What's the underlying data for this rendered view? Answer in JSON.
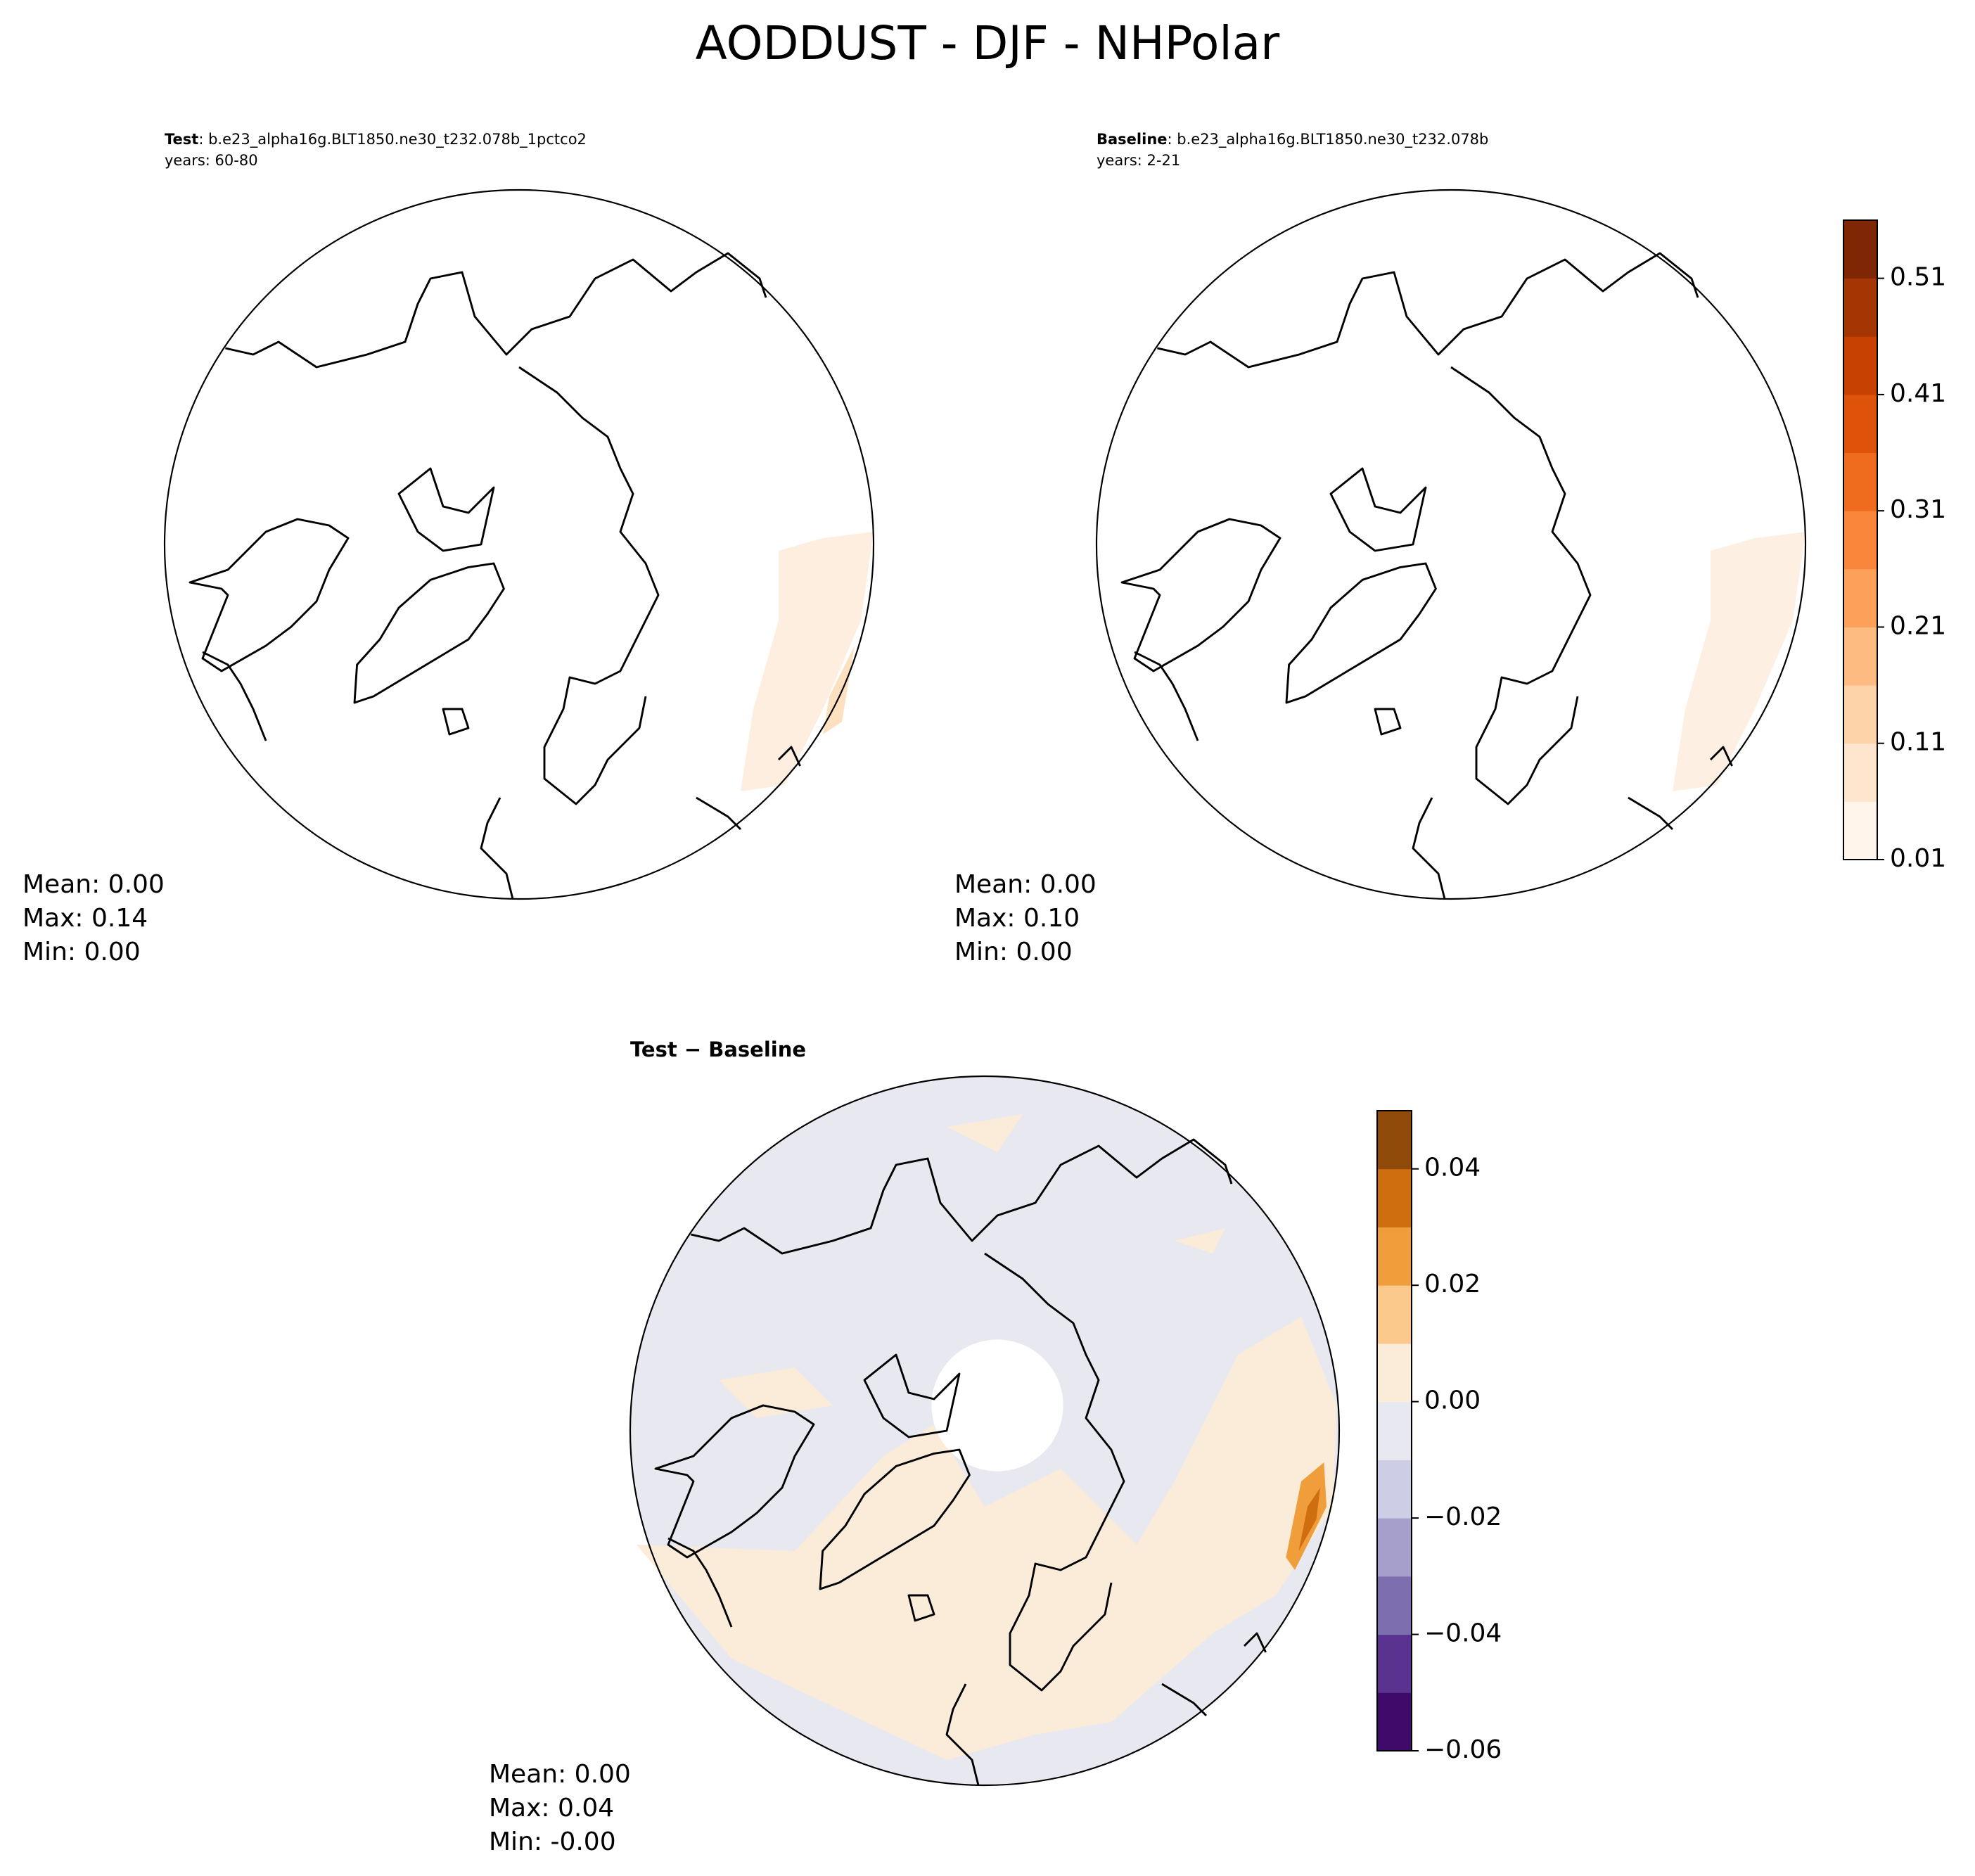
{
  "title": "AODDUST - DJF - NHPolar",
  "panels": [
    {
      "label": "Test",
      "case": ": b.e23_alpha16g.BLT1850.ne30_t232.078b_1pctco2",
      "years": "years: 60-80",
      "stats": [
        "Mean:  0.00",
        "Max:  0.14",
        "Min:  0.00"
      ]
    },
    {
      "label": "Baseline",
      "case": ": b.e23_alpha16g.BLT1850.ne30_t232.078b",
      "years": "years: 2-21",
      "stats": [
        "Mean:  0.00",
        "Max:  0.10",
        "Min:  0.00"
      ]
    },
    {
      "label": "Test − Baseline",
      "stats": [
        "Mean:  0.00",
        "Max:  0.04",
        "Min: -0.00"
      ]
    }
  ],
  "colorbars": [
    {
      "lim": [
        0.01,
        0.56
      ],
      "ticks": [
        0.01,
        0.11,
        0.21,
        0.31,
        0.41,
        0.51
      ],
      "colors": [
        "#fff5eb",
        "#fee6ce",
        "#fdd4aa",
        "#fdbb82",
        "#fda05a",
        "#f9863a",
        "#ef6b1e",
        "#df520a",
        "#c64102",
        "#a53603",
        "#7f2704"
      ]
    },
    {
      "lim": [
        -0.06,
        0.05
      ],
      "ticks": [
        {
          "value": -0.06,
          "label": "−0.06"
        },
        {
          "value": -0.04,
          "label": "−0.04"
        },
        {
          "value": -0.02,
          "label": "−0.02"
        },
        {
          "value": 0,
          "label": "0.00"
        },
        0.02,
        0.04
      ],
      "colors": [
        "#3f0a6a",
        "#5a3391",
        "#7d6eb0",
        "#a79fcb",
        "#cdcde5",
        "#e8e9f0",
        "#fbebd9",
        "#fcc98c",
        "#f09d3c",
        "#cf6e0f",
        "#8f4908"
      ]
    }
  ]
}
